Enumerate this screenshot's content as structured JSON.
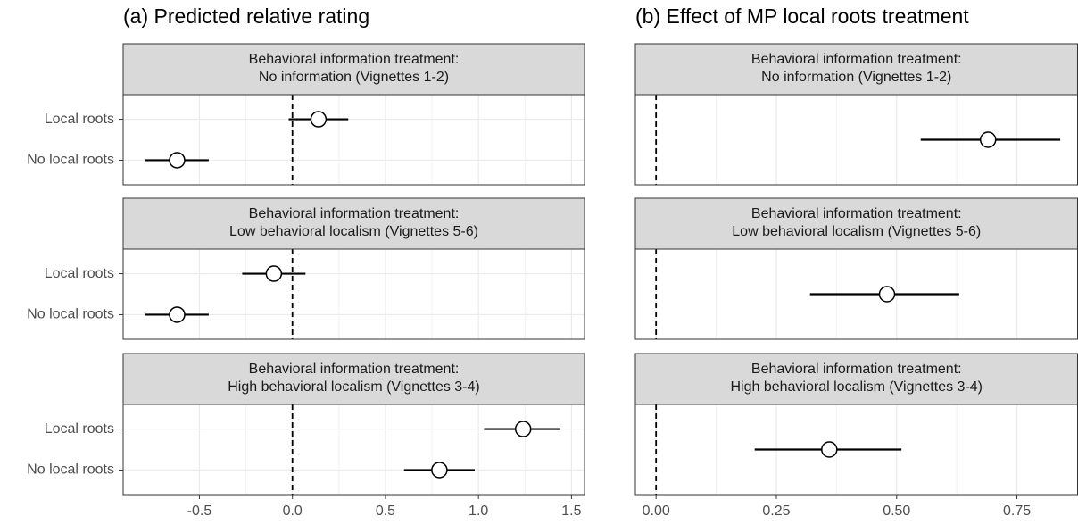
{
  "chart_data": [
    {
      "type": "pointrange",
      "title": "(a) Predicted relative rating",
      "xlim": [
        -0.91,
        1.57
      ],
      "xticks": [
        -0.5,
        {
          "value": 0,
          "label": "0.0"
        },
        0.5,
        {
          "value": 1,
          "label": "1.0"
        },
        1.5
      ],
      "reference_line": 0,
      "grid": true,
      "color": "#000000",
      "facets": [
        {
          "strip_title": "Behavioral information treatment:",
          "strip_label": "No information (Vignettes 1-2)",
          "categories": [
            "Local roots",
            "No local roots"
          ],
          "values": [
            0.14,
            -0.62
          ],
          "lower": [
            -0.02,
            -0.79
          ],
          "upper": [
            0.3,
            -0.45
          ]
        },
        {
          "strip_title": "Behavioral information treatment:",
          "strip_label": "Low behavioral localism (Vignettes 5-6)",
          "categories": [
            "Local roots",
            "No local roots"
          ],
          "values": [
            -0.1,
            -0.62
          ],
          "lower": [
            -0.27,
            -0.79
          ],
          "upper": [
            0.07,
            -0.45
          ]
        },
        {
          "strip_title": "Behavioral information treatment:",
          "strip_label": "High behavioral localism (Vignettes 3-4)",
          "categories": [
            "Local roots",
            "No local roots"
          ],
          "values": [
            1.24,
            0.79
          ],
          "lower": [
            1.03,
            0.6
          ],
          "upper": [
            1.44,
            0.98
          ]
        }
      ]
    },
    {
      "type": "pointrange",
      "title": "(b) Effect of MP local roots treatment",
      "xlim": [
        -0.043,
        0.876
      ],
      "xticks": [
        {
          "value": 0,
          "label": "0.00"
        },
        0.25,
        {
          "value": 0.5,
          "label": "0.50"
        },
        {
          "value": 0.75,
          "label": "0.75"
        }
      ],
      "reference_line": 0,
      "grid": true,
      "color": "#000000",
      "facets": [
        {
          "strip_title": "Behavioral information treatment:",
          "strip_label": "No information (Vignettes 1-2)",
          "categories": [
            null
          ],
          "values": [
            0.69
          ],
          "lower": [
            0.55
          ],
          "upper": [
            0.84
          ]
        },
        {
          "strip_title": "Behavioral information treatment:",
          "strip_label": "Low behavioral localism (Vignettes 5-6)",
          "categories": [
            null
          ],
          "values": [
            0.48
          ],
          "lower": [
            0.32
          ],
          "upper": [
            0.63
          ]
        },
        {
          "strip_title": "Behavioral information treatment:",
          "strip_label": "High behavioral localism (Vignettes 3-4)",
          "categories": [
            null
          ],
          "values": [
            0.36
          ],
          "lower": [
            0.205
          ],
          "upper": [
            0.51
          ]
        }
      ]
    }
  ]
}
